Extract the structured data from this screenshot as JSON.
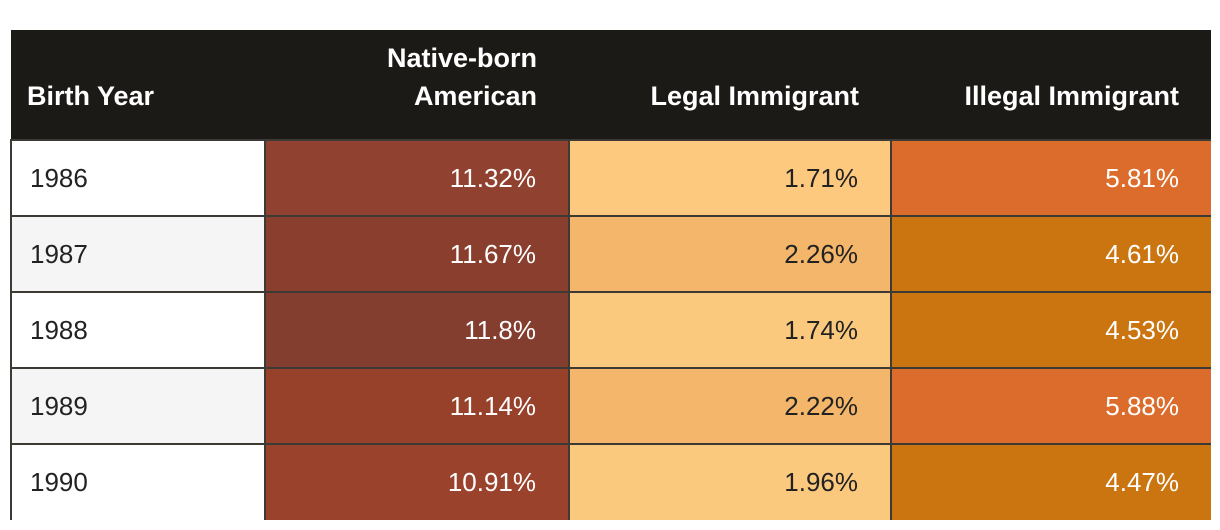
{
  "chart_data": {
    "type": "table",
    "columns": [
      "Birth Year",
      "Native-born American",
      "Legal Immigrant",
      "Illegal Immigrant"
    ],
    "header_lines": {
      "native_line1": "Native-born",
      "native_line2": "American"
    },
    "rows": [
      {
        "year": "1986",
        "native": "11.32%",
        "legal": "1.71%",
        "illegal": "5.81%",
        "native_color": "#91412f",
        "legal_color": "#fcc97e",
        "illegal_color": "#dc6c2c"
      },
      {
        "year": "1987",
        "native": "11.67%",
        "legal": "2.26%",
        "illegal": "4.61%",
        "native_color": "#8a3e2d",
        "legal_color": "#f3b66a",
        "illegal_color": "#cb7511"
      },
      {
        "year": "1988",
        "native": "11.8%",
        "legal": "1.74%",
        "illegal": "4.53%",
        "native_color": "#843e2f",
        "legal_color": "#fbc97e",
        "illegal_color": "#cb7511"
      },
      {
        "year": "1989",
        "native": "11.14%",
        "legal": "2.22%",
        "illegal": "5.88%",
        "native_color": "#97412b",
        "legal_color": "#f3b66a",
        "illegal_color": "#dc6c2c"
      },
      {
        "year": "1990",
        "native": "10.91%",
        "legal": "1.96%",
        "illegal": "4.47%",
        "native_color": "#9a422c",
        "legal_color": "#fbc97e",
        "illegal_color": "#cb7511"
      }
    ]
  }
}
